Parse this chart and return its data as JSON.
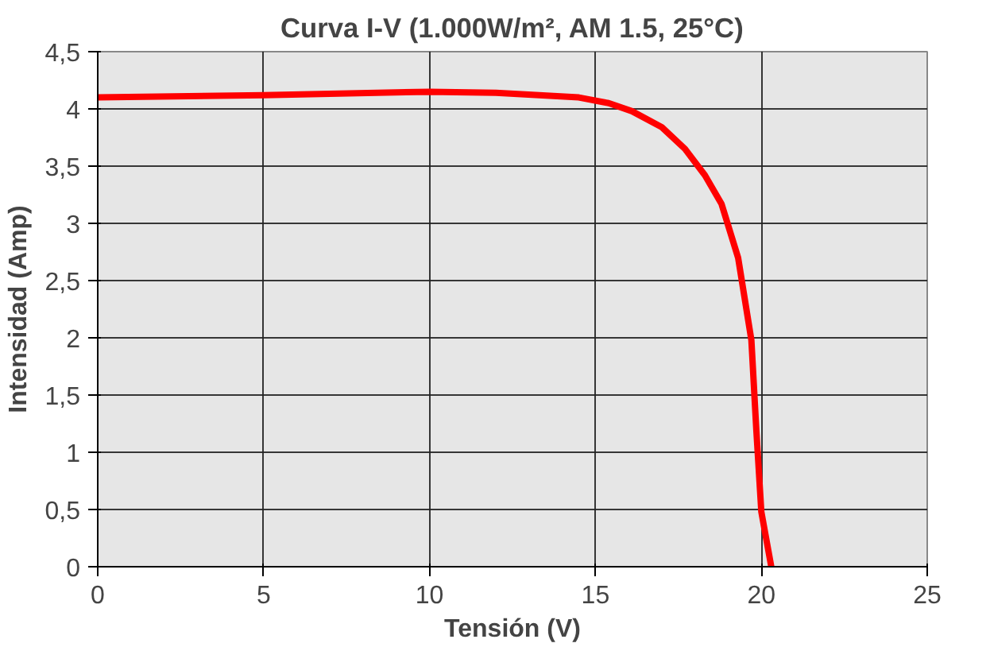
{
  "chart_data": {
    "type": "line",
    "title": "Curva I-V (1.000W/m², AM 1.5, 25°C)",
    "xlabel": "Tensión (V)",
    "ylabel": "Intensidad (Amp)",
    "x": [
      0,
      5,
      10,
      12,
      14.5,
      15.4,
      16.1,
      17.0,
      17.7,
      18.3,
      18.8,
      19.3,
      19.7,
      19.85,
      20.0,
      20.3
    ],
    "series": [
      {
        "color": "#ff0000",
        "values": [
          4.1,
          4.12,
          4.15,
          4.14,
          4.1,
          4.05,
          3.98,
          3.84,
          3.65,
          3.42,
          3.17,
          2.7,
          1.98,
          1.19,
          0.48,
          0
        ]
      }
    ],
    "xlim": [
      0,
      25
    ],
    "xticks": [
      0,
      5,
      10,
      15,
      20,
      25
    ],
    "ylim": [
      0,
      4.5
    ],
    "yticks": [
      0,
      {
        "value": 0.5,
        "label": "0,5"
      },
      1,
      {
        "value": 1.5,
        "label": "1,5"
      },
      2,
      {
        "value": 2.5,
        "label": "2,5"
      },
      3,
      {
        "value": 3.5,
        "label": "3,5"
      },
      4,
      {
        "value": 4.5,
        "label": "4,5"
      }
    ],
    "grid": true,
    "marker": "none",
    "line_style": "solid"
  }
}
